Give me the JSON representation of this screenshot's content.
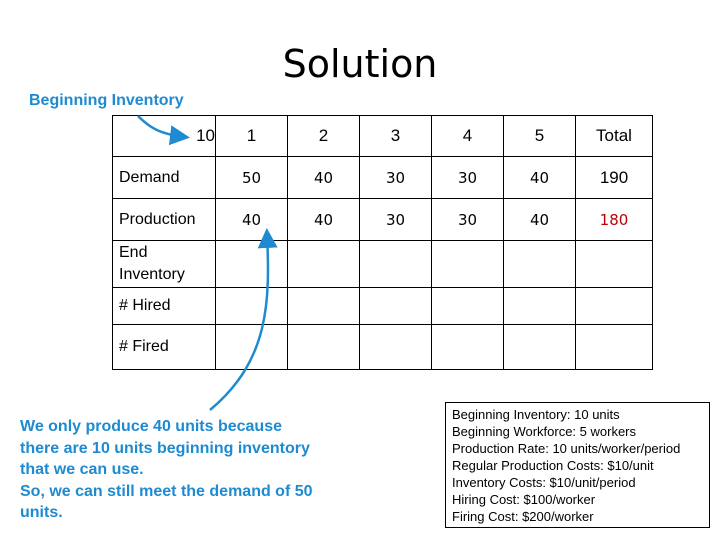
{
  "title": "Solution",
  "callouts": {
    "beginning_inventory": "Beginning Inventory",
    "explanation_lines": [
      "We only produce 40 units because",
      "there are 10 units beginning inventory",
      "that we can use.",
      "So, we can still meet the demand of 50",
      "units."
    ]
  },
  "table": {
    "header": [
      "10",
      "1",
      "2",
      "3",
      "4",
      "5",
      "Total"
    ],
    "rows": [
      {
        "label": "Demand",
        "values": [
          "50",
          "40",
          "30",
          "30",
          "40"
        ],
        "total": "190"
      },
      {
        "label": "Production",
        "values": [
          "40",
          "40",
          "30",
          "30",
          "40"
        ],
        "total": "180"
      },
      {
        "label_lines": [
          "End",
          "Inventory"
        ],
        "values": [
          "",
          "",
          "",
          "",
          ""
        ],
        "total": ""
      },
      {
        "label": "# Hired",
        "values": [
          "",
          "",
          "",
          "",
          ""
        ],
        "total": ""
      },
      {
        "label": "# Fired",
        "values": [
          "",
          "",
          "",
          "",
          ""
        ],
        "total": ""
      }
    ]
  },
  "info_box": [
    "Beginning Inventory: 10 units",
    "Beginning Workforce: 5 workers",
    "Production Rate: 10 units/worker/period",
    "Regular Production Costs: $10/unit",
    "Inventory Costs: $10/unit/period",
    "Hiring Cost: $100/worker",
    "Firing Cost: $200/worker"
  ],
  "colors": {
    "accent": "#1e8bd0",
    "highlight": "#c00000"
  }
}
